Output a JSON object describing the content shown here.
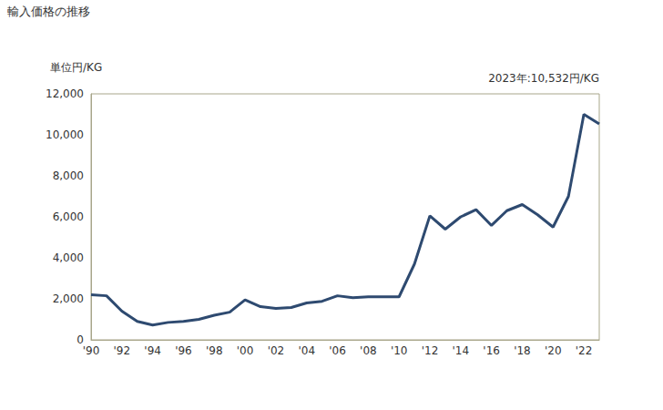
{
  "chart_data": {
    "type": "line",
    "title": "輸入価格の推移",
    "y_label": "単位円/KG",
    "annotations": [
      "2023年:10,532円/KG"
    ],
    "categories": [
      "'90",
      null,
      "'92",
      null,
      "'94",
      null,
      "'96",
      null,
      "'98",
      null,
      "'00",
      null,
      "'02",
      null,
      "'04",
      null,
      "'06",
      null,
      "'08",
      null,
      "'10",
      null,
      "'12",
      null,
      "'14",
      null,
      "'16",
      null,
      "'18",
      null,
      "'20",
      null,
      "'22",
      null
    ],
    "values": [
      2200,
      2150,
      1400,
      900,
      720,
      850,
      900,
      1000,
      1200,
      1350,
      1950,
      1620,
      1530,
      1580,
      1800,
      1880,
      2150,
      2060,
      2100,
      2100,
      2100,
      3700,
      6050,
      5400,
      6000,
      6350,
      5580,
      6300,
      6600,
      6100,
      5500,
      7000,
      11000,
      10532
    ],
    "color": "#2e4a70",
    "ylim": [
      0,
      12000
    ],
    "yticks": [
      0,
      {
        "value": 2000,
        "label": "2,000"
      },
      {
        "value": 4000,
        "label": "4,000"
      },
      {
        "value": 6000,
        "label": "6,000"
      },
      {
        "value": 8000,
        "label": "8,000"
      },
      {
        "value": 10000,
        "label": "10,000"
      },
      {
        "value": 12000,
        "label": "12,000"
      }
    ],
    "grid": false
  }
}
